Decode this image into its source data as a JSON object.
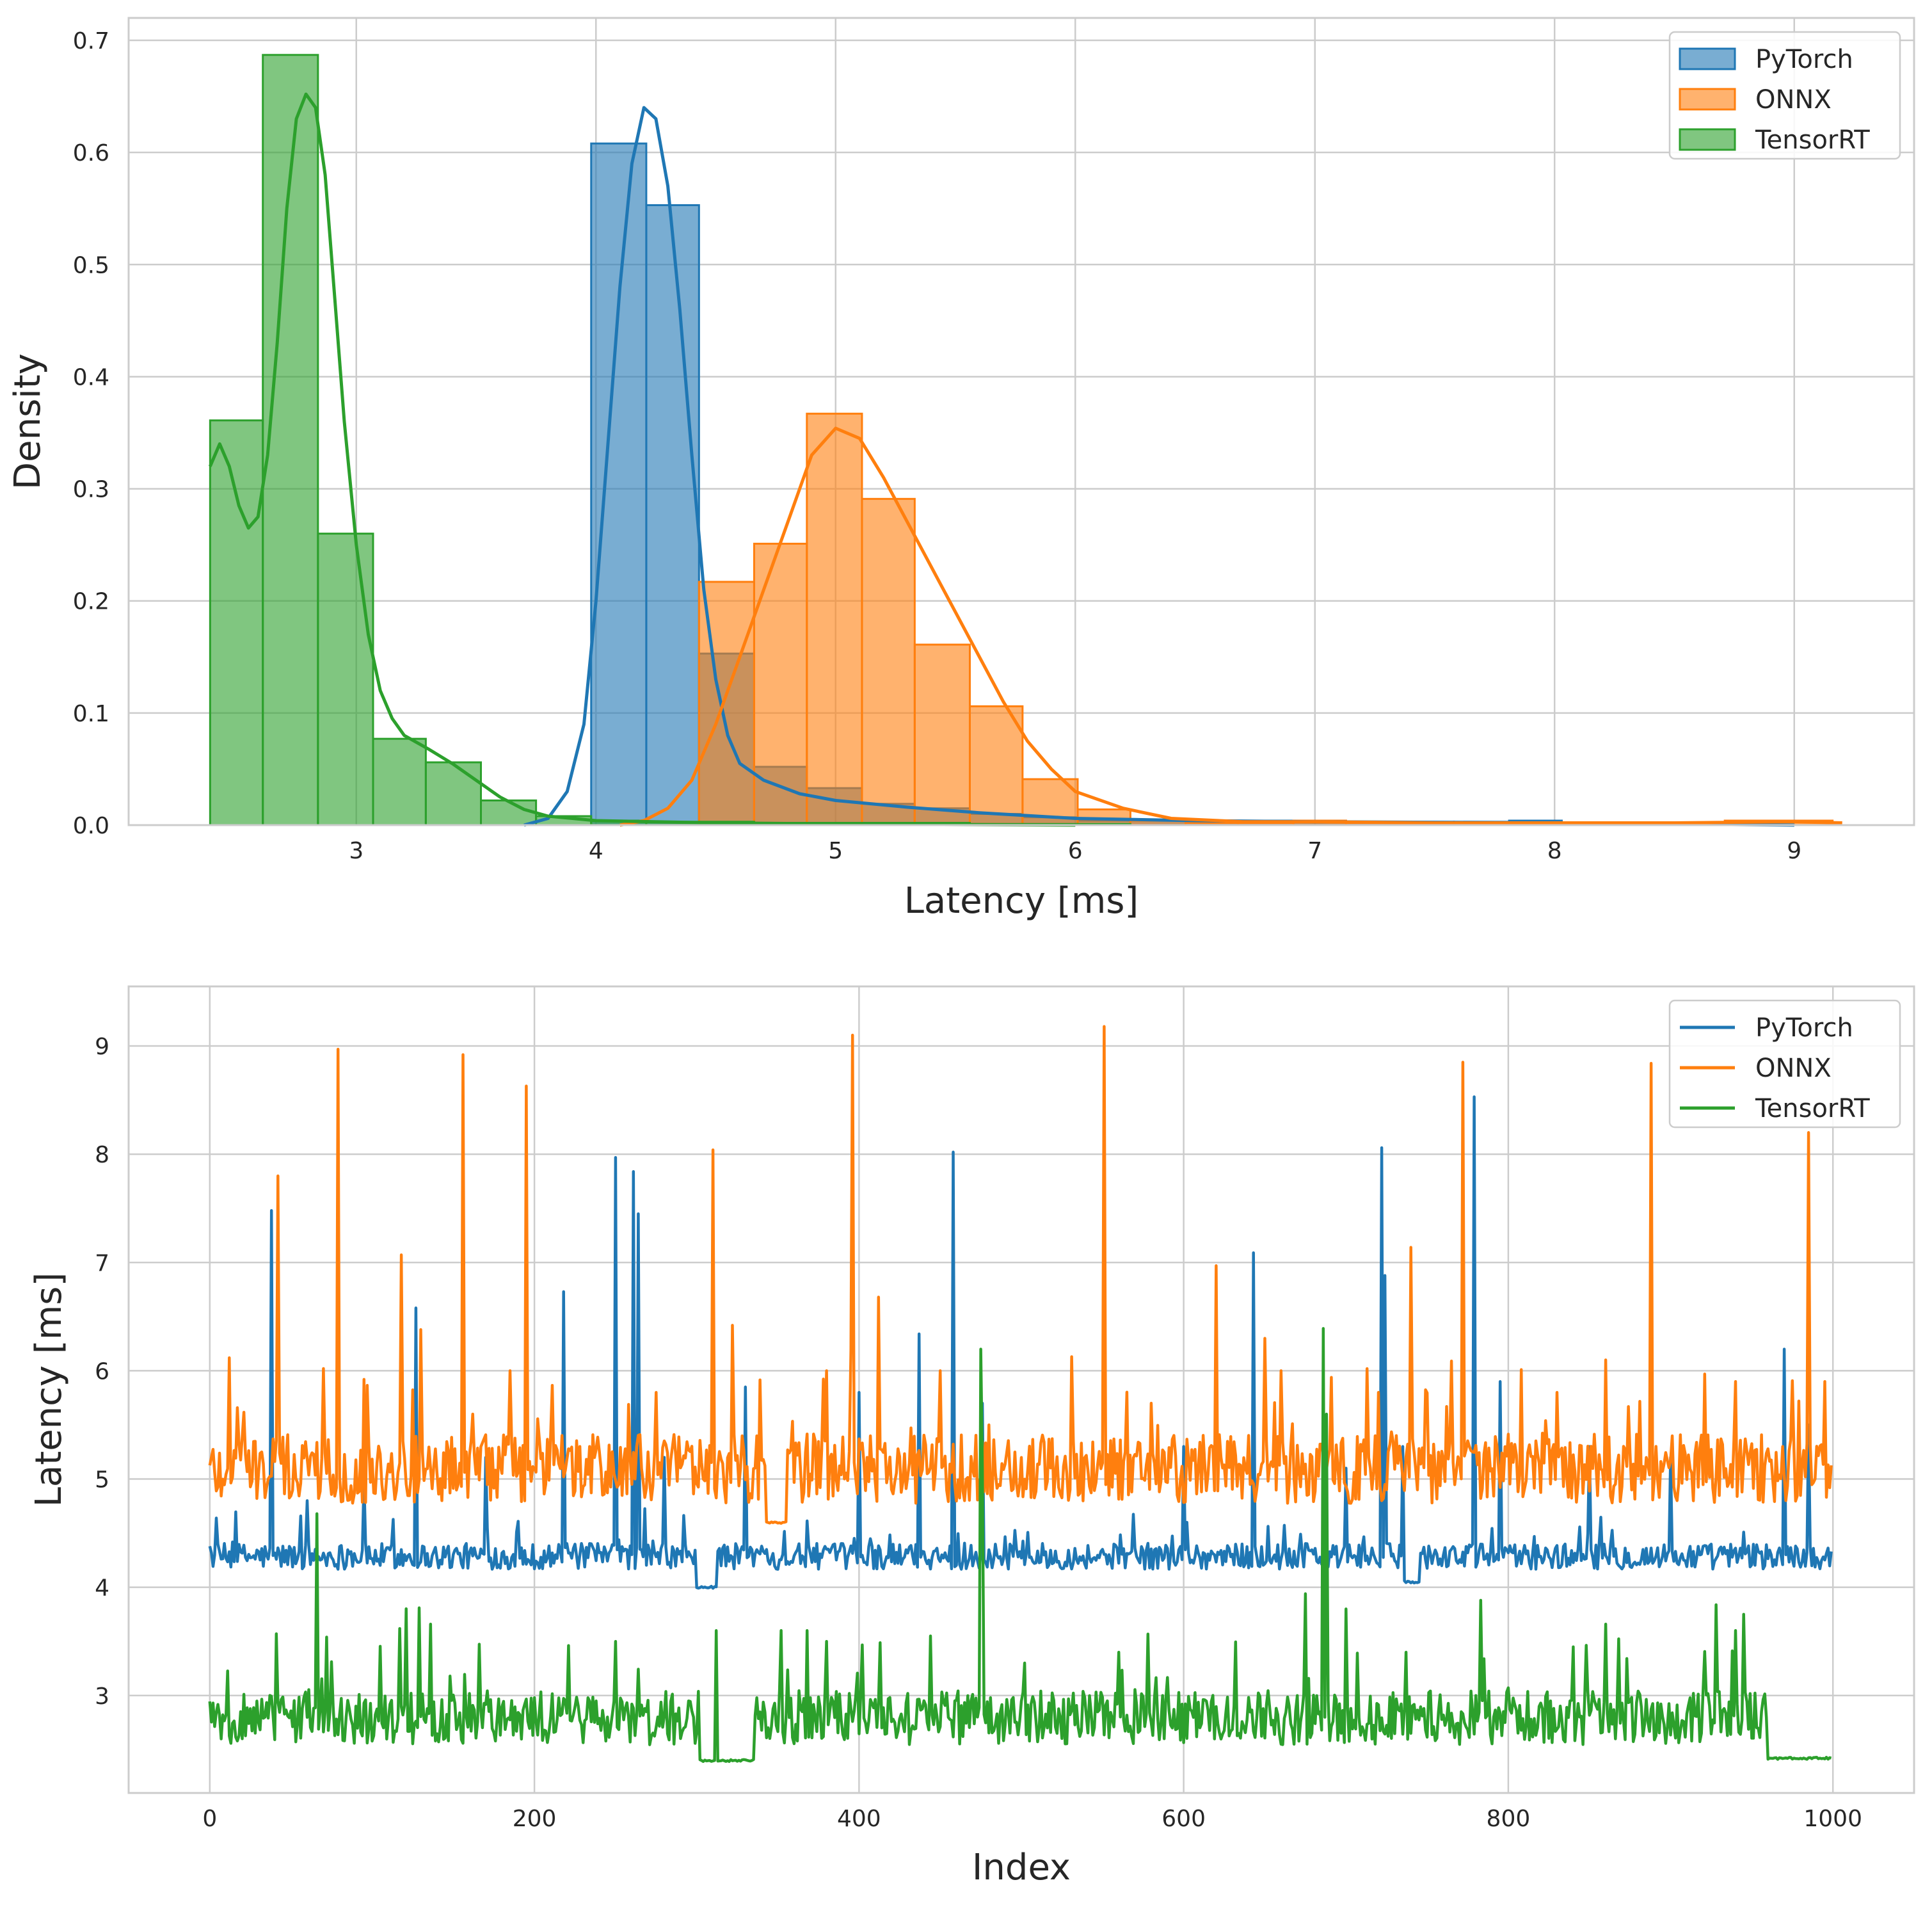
{
  "colors": {
    "pytorch": "#1f77b4",
    "onnx": "#ff7f0e",
    "tensorrt": "#2ca02c",
    "grid": "#cccccc",
    "axis": "#cccccc"
  },
  "chart_data": [
    {
      "type": "histogram",
      "xlabel": "Latency [ms]",
      "ylabel": "Density",
      "xlim": [
        2.05,
        9.5
      ],
      "ylim": [
        0,
        0.72
      ],
      "x_ticks": [
        3,
        4,
        5,
        6,
        7,
        8,
        9
      ],
      "y_ticks": [
        0.0,
        0.1,
        0.2,
        0.3,
        0.4,
        0.5,
        0.6,
        0.7
      ],
      "x_tick_labels": [
        "3",
        "4",
        "5",
        "6",
        "7",
        "8",
        "9"
      ],
      "y_tick_labels": [
        "0.0",
        "0.1",
        "0.2",
        "0.3",
        "0.4",
        "0.5",
        "0.6",
        "0.7"
      ],
      "grid": true,
      "legend_position": "top-right",
      "series": [
        {
          "name": "PyTorch",
          "bin_edges": [
            3.98,
            4.21,
            4.43,
            4.66,
            4.88,
            5.11,
            5.33,
            5.56,
            5.78,
            6.01,
            6.23,
            6.46,
            6.68,
            6.91,
            7.13,
            7.36,
            7.58,
            7.81,
            8.03
          ],
          "densities": [
            0.608,
            0.553,
            0.153,
            0.052,
            0.033,
            0.019,
            0.015,
            0.01,
            0.007,
            0.004,
            0.004,
            0.003,
            0.004,
            0.003,
            0.003,
            0.003,
            0.003,
            0.004
          ],
          "kde": [
            [
              3.7,
              0.0
            ],
            [
              3.8,
              0.006
            ],
            [
              3.88,
              0.03
            ],
            [
              3.95,
              0.09
            ],
            [
              4.0,
              0.2
            ],
            [
              4.05,
              0.34
            ],
            [
              4.1,
              0.48
            ],
            [
              4.15,
              0.59
            ],
            [
              4.2,
              0.64
            ],
            [
              4.25,
              0.63
            ],
            [
              4.3,
              0.57
            ],
            [
              4.35,
              0.46
            ],
            [
              4.4,
              0.33
            ],
            [
              4.45,
              0.21
            ],
            [
              4.5,
              0.13
            ],
            [
              4.55,
              0.08
            ],
            [
              4.6,
              0.055
            ],
            [
              4.7,
              0.04
            ],
            [
              4.85,
              0.028
            ],
            [
              5.0,
              0.022
            ],
            [
              5.3,
              0.016
            ],
            [
              5.6,
              0.011
            ],
            [
              6.0,
              0.006
            ],
            [
              6.5,
              0.004
            ],
            [
              7.0,
              0.003
            ],
            [
              8.0,
              0.002
            ],
            [
              8.5,
              0.001
            ],
            [
              9.0,
              0.0
            ]
          ]
        },
        {
          "name": "ONNX",
          "bin_edges": [
            4.43,
            4.66,
            4.88,
            5.11,
            5.33,
            5.56,
            5.78,
            6.01,
            6.23,
            6.46,
            6.68,
            6.91,
            7.13,
            7.36,
            7.58,
            7.81,
            8.03,
            8.26,
            8.48,
            8.71,
            8.93,
            9.16
          ],
          "densities": [
            0.217,
            0.251,
            0.367,
            0.291,
            0.161,
            0.106,
            0.041,
            0.014,
            0.004,
            0.002,
            0.002,
            0.004,
            0.002,
            0.002,
            0.002,
            0.002,
            0.002,
            0.002,
            0.002,
            0.004,
            0.004
          ],
          "kde": [
            [
              4.1,
              0.0
            ],
            [
              4.2,
              0.004
            ],
            [
              4.3,
              0.015
            ],
            [
              4.4,
              0.04
            ],
            [
              4.5,
              0.09
            ],
            [
              4.6,
              0.15
            ],
            [
              4.7,
              0.21
            ],
            [
              4.8,
              0.27
            ],
            [
              4.9,
              0.33
            ],
            [
              5.0,
              0.354
            ],
            [
              5.1,
              0.345
            ],
            [
              5.2,
              0.31
            ],
            [
              5.3,
              0.27
            ],
            [
              5.4,
              0.23
            ],
            [
              5.5,
              0.19
            ],
            [
              5.6,
              0.15
            ],
            [
              5.7,
              0.11
            ],
            [
              5.8,
              0.075
            ],
            [
              5.9,
              0.05
            ],
            [
              6.0,
              0.03
            ],
            [
              6.2,
              0.015
            ],
            [
              6.4,
              0.006
            ],
            [
              6.7,
              0.003
            ],
            [
              7.0,
              0.003
            ],
            [
              7.5,
              0.002
            ],
            [
              8.0,
              0.002
            ],
            [
              8.5,
              0.002
            ],
            [
              9.0,
              0.003
            ],
            [
              9.2,
              0.002
            ]
          ]
        },
        {
          "name": "TensorRT",
          "bin_edges": [
            2.39,
            2.61,
            2.84,
            3.07,
            3.29,
            3.52,
            3.75,
            3.98,
            4.21,
            4.43,
            4.66,
            4.88,
            5.11,
            5.33,
            5.56,
            5.78,
            6.01,
            6.23
          ],
          "densities": [
            0.361,
            0.687,
            0.26,
            0.077,
            0.056,
            0.022,
            0.008,
            0.004,
            0.003,
            0.003,
            0.002,
            0.002,
            0.002,
            0.002,
            0.001,
            0.001,
            0.001
          ],
          "kde": [
            [
              2.39,
              0.32
            ],
            [
              2.43,
              0.34
            ],
            [
              2.47,
              0.32
            ],
            [
              2.51,
              0.285
            ],
            [
              2.55,
              0.265
            ],
            [
              2.59,
              0.275
            ],
            [
              2.63,
              0.33
            ],
            [
              2.67,
              0.43
            ],
            [
              2.71,
              0.55
            ],
            [
              2.75,
              0.63
            ],
            [
              2.79,
              0.652
            ],
            [
              2.83,
              0.64
            ],
            [
              2.87,
              0.58
            ],
            [
              2.91,
              0.47
            ],
            [
              2.95,
              0.36
            ],
            [
              3.0,
              0.25
            ],
            [
              3.05,
              0.17
            ],
            [
              3.1,
              0.12
            ],
            [
              3.15,
              0.095
            ],
            [
              3.2,
              0.08
            ],
            [
              3.3,
              0.068
            ],
            [
              3.4,
              0.055
            ],
            [
              3.5,
              0.04
            ],
            [
              3.6,
              0.025
            ],
            [
              3.7,
              0.014
            ],
            [
              3.8,
              0.008
            ],
            [
              4.0,
              0.004
            ],
            [
              4.5,
              0.002
            ],
            [
              5.0,
              0.001
            ],
            [
              6.0,
              0.0
            ]
          ]
        }
      ]
    },
    {
      "type": "line",
      "xlabel": "Index",
      "ylabel": "Latency [ms]",
      "xlim": [
        -50,
        1050
      ],
      "ylim": [
        2.1,
        9.55
      ],
      "x_ticks": [
        0,
        200,
        400,
        600,
        800,
        1000
      ],
      "y_ticks": [
        3,
        4,
        5,
        6,
        7,
        8,
        9
      ],
      "x_tick_labels": [
        "0",
        "200",
        "400",
        "600",
        "800",
        "1000"
      ],
      "y_tick_labels": [
        "3",
        "4",
        "5",
        "6",
        "7",
        "8",
        "9"
      ],
      "grid": true,
      "legend_position": "top-right",
      "series": [
        {
          "name": "PyTorch",
          "baseline": 4.25,
          "noise": 0.12,
          "floor": 3.95,
          "flat_segments": [
            [
              300,
              312,
              4.0
            ],
            [
              735,
              745,
              4.05
            ]
          ],
          "spikes": [
            [
              38,
              7.48
            ],
            [
              60,
              4.8
            ],
            [
              95,
              5.0
            ],
            [
              127,
              6.58
            ],
            [
              170,
              5.2
            ],
            [
              218,
              6.73
            ],
            [
              250,
              7.97
            ],
            [
              261,
              7.84
            ],
            [
              264,
              7.45
            ],
            [
              280,
              5.2
            ],
            [
              330,
              5.85
            ],
            [
              400,
              5.8
            ],
            [
              437,
              6.34
            ],
            [
              458,
              8.02
            ],
            [
              476,
              5.7
            ],
            [
              600,
              5.3
            ],
            [
              643,
              7.09
            ],
            [
              700,
              5.1
            ],
            [
              722,
              8.06
            ],
            [
              724,
              6.88
            ],
            [
              735,
              5.3
            ],
            [
              779,
              8.53
            ],
            [
              795,
              5.9
            ],
            [
              850,
              5.3
            ],
            [
              900,
              5.2
            ],
            [
              970,
              6.2
            ],
            [
              985,
              5.5
            ]
          ]
        },
        {
          "name": "ONNX",
          "baseline": 5.0,
          "noise": 0.32,
          "floor": 4.55,
          "flat_segments": [
            [
              343,
              355,
              4.6
            ]
          ],
          "spikes": [
            [
              12,
              6.12
            ],
            [
              42,
              7.8
            ],
            [
              70,
              6.02
            ],
            [
              79,
              8.97
            ],
            [
              95,
              5.92
            ],
            [
              118,
              7.07
            ],
            [
              130,
              6.38
            ],
            [
              156,
              8.92
            ],
            [
              185,
              6.0
            ],
            [
              195,
              8.63
            ],
            [
              275,
              5.8
            ],
            [
              310,
              8.04
            ],
            [
              322,
              6.42
            ],
            [
              380,
              6.0
            ],
            [
              396,
              9.1
            ],
            [
              412,
              6.68
            ],
            [
              450,
              6.0
            ],
            [
              480,
              5.5
            ],
            [
              551,
              9.18
            ],
            [
              580,
              5.7
            ],
            [
              620,
              6.97
            ],
            [
              650,
              6.3
            ],
            [
              660,
              6.0
            ],
            [
              720,
              5.8
            ],
            [
              740,
              7.14
            ],
            [
              772,
              8.85
            ],
            [
              830,
              5.8
            ],
            [
              860,
              6.1
            ],
            [
              888,
              8.84
            ],
            [
              940,
              5.9
            ],
            [
              985,
              8.2
            ],
            [
              995,
              5.9
            ]
          ]
        },
        {
          "name": "TensorRT",
          "baseline": 2.72,
          "noise": 0.25,
          "floor": 2.4,
          "flat_segments": [
            [
              302,
              335,
              2.4
            ],
            [
              960,
              1000,
              2.42
            ]
          ],
          "spikes": [
            [
              41,
              3.57
            ],
            [
              66,
              4.68
            ],
            [
              72,
              3.54
            ],
            [
              129,
              3.81
            ],
            [
              136,
              3.66
            ],
            [
              250,
              3.5
            ],
            [
              312,
              3.6
            ],
            [
              352,
              3.6
            ],
            [
              368,
              3.6
            ],
            [
              380,
              3.5
            ],
            [
              444,
              3.55
            ],
            [
              475,
              6.2
            ],
            [
              476,
              5.1
            ],
            [
              502,
              3.3
            ],
            [
              560,
              3.4
            ],
            [
              675,
              3.94
            ],
            [
              686,
              6.39
            ],
            [
              688,
              5.6
            ],
            [
              700,
              3.8
            ],
            [
              737,
              3.4
            ],
            [
              783,
              3.88
            ],
            [
              840,
              3.45
            ],
            [
              860,
              3.66
            ],
            [
              940,
              3.6
            ],
            [
              945,
              3.75
            ]
          ]
        }
      ]
    }
  ]
}
